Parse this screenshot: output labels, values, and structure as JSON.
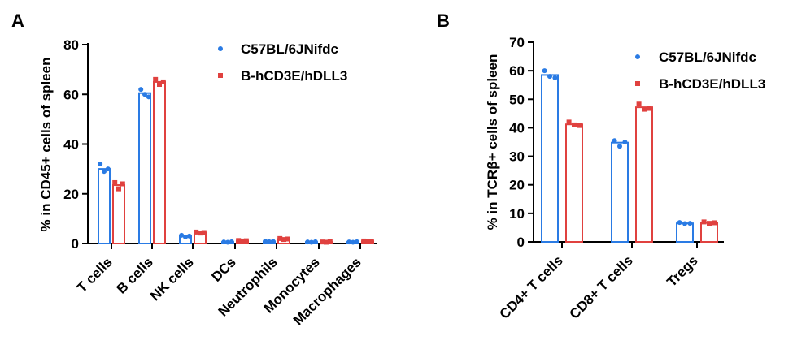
{
  "colors": {
    "s1": "#2a7be4",
    "s2": "#e0413f"
  },
  "chart_data": [
    {
      "panel": "A",
      "type": "bar",
      "ylabel": "% in CD45+ cells of spleen",
      "ylim": [
        0,
        80
      ],
      "yticks": [
        0,
        20,
        40,
        60,
        80
      ],
      "categories": [
        "T cells",
        "B cells",
        "NK cells",
        "DCs",
        "Neutrophils",
        "Monocytes",
        "Macrophages"
      ],
      "series": [
        {
          "name": "C57BL/6JNifdc",
          "marker": "circle",
          "values": [
            30,
            60.5,
            3,
            0.6,
            0.8,
            0.6,
            0.6
          ],
          "points": [
            [
              32,
              29,
              30
            ],
            [
              62,
              60,
              59
            ],
            [
              3.3,
              2.6,
              3
            ],
            [
              0.6,
              0.5,
              0.7
            ],
            [
              0.9,
              0.7,
              0.8
            ],
            [
              0.6,
              0.5,
              0.7
            ],
            [
              0.6,
              0.5,
              0.7
            ]
          ]
        },
        {
          "name": "B-hCD3E/hDLL3",
          "marker": "square",
          "values": [
            23.5,
            65,
            4.4,
            1.1,
            1.8,
            0.6,
            0.9
          ],
          "points": [
            [
              24.5,
              22,
              24
            ],
            [
              66,
              64,
              65
            ],
            [
              4.6,
              4.2,
              4.4
            ],
            [
              1.2,
              1.0,
              1.1
            ],
            [
              2.0,
              1.6,
              1.8
            ],
            [
              0.6,
              0.5,
              0.7
            ],
            [
              1.0,
              0.8,
              0.9
            ]
          ]
        }
      ]
    },
    {
      "panel": "B",
      "type": "bar",
      "ylabel": "% in TCRβ+ cells of spleen",
      "ylim": [
        0,
        70
      ],
      "yticks": [
        0,
        10,
        20,
        30,
        40,
        50,
        60,
        70
      ],
      "categories": [
        "CD4+ T cells",
        "CD8+ T cells",
        "Tregs"
      ],
      "series": [
        {
          "name": "C57BL/6JNifdc",
          "marker": "circle",
          "values": [
            58.5,
            34.8,
            6.5
          ],
          "points": [
            [
              60,
              58,
              57.5
            ],
            [
              35.5,
              33.5,
              35
            ],
            [
              6.8,
              6.4,
              6.5
            ]
          ]
        },
        {
          "name": "B-hCD3E/hDLL3",
          "marker": "square",
          "values": [
            41.2,
            47.2,
            6.7
          ],
          "points": [
            [
              42,
              41,
              40.8
            ],
            [
              48.3,
              46.5,
              46.8
            ],
            [
              7.0,
              6.5,
              6.7
            ]
          ]
        }
      ]
    }
  ]
}
